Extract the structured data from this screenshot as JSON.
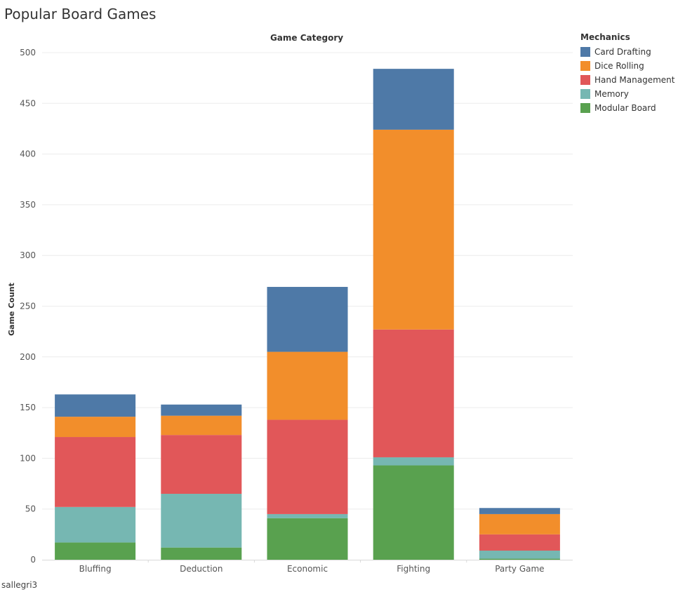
{
  "page": {
    "title": "Popular Board Games",
    "footer": "sallegri3"
  },
  "legend": {
    "title": "Mechanics",
    "items": [
      {
        "label": "Card Drafting",
        "color": "#4e79a7"
      },
      {
        "label": "Dice Rolling",
        "color": "#f28e2b"
      },
      {
        "label": "Hand Management",
        "color": "#e15759"
      },
      {
        "label": "Memory",
        "color": "#76b7b2"
      },
      {
        "label": "Modular Board",
        "color": "#59a14f"
      }
    ]
  },
  "chart_data": {
    "type": "bar",
    "stacked": true,
    "title": "Popular Board Games",
    "column_header": "Game Category",
    "xlabel": "",
    "ylabel": "Game Count",
    "ylim": [
      0,
      500
    ],
    "yticks": [
      0,
      50,
      100,
      150,
      200,
      250,
      300,
      350,
      400,
      450,
      500
    ],
    "grid": true,
    "legend_position": "right",
    "categories": [
      "Bluffing",
      "Deduction",
      "Economic",
      "Fighting",
      "Party Game"
    ],
    "series": [
      {
        "name": "Modular Board",
        "color": "#59a14f",
        "values": [
          17,
          12,
          41,
          93,
          1
        ]
      },
      {
        "name": "Memory",
        "color": "#76b7b2",
        "values": [
          35,
          53,
          4,
          8,
          8
        ]
      },
      {
        "name": "Hand Management",
        "color": "#e15759",
        "values": [
          69,
          58,
          93,
          126,
          16
        ]
      },
      {
        "name": "Dice Rolling",
        "color": "#f28e2b",
        "values": [
          20,
          19,
          67,
          197,
          20
        ]
      },
      {
        "name": "Card Drafting",
        "color": "#4e79a7",
        "values": [
          22,
          11,
          64,
          60,
          6
        ]
      }
    ]
  }
}
